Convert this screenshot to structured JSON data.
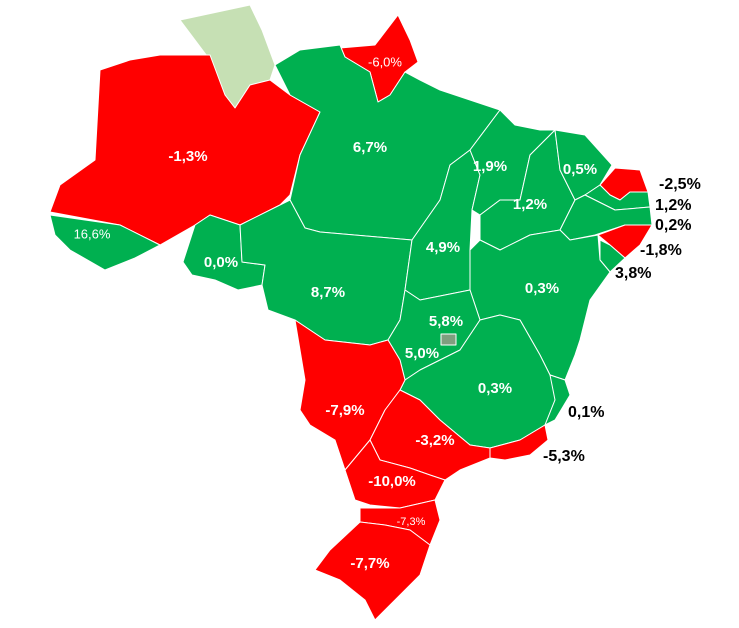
{
  "colors": {
    "negative": "#ff0000",
    "positive": "#00b050",
    "no_data": "#c6e0b4",
    "border": "#ffffff",
    "federal_district": "#7f9f7f"
  },
  "regions": [
    {
      "id": "roraima",
      "value": null,
      "color": "#c6e0b4"
    },
    {
      "id": "amapa",
      "value": "-6,0%",
      "color": "#ff0000"
    },
    {
      "id": "amazonas",
      "value": "-1,3%",
      "color": "#ff0000"
    },
    {
      "id": "acre",
      "value": "16,6%",
      "color": "#00b050"
    },
    {
      "id": "para",
      "value": "6,7%",
      "color": "#00b050"
    },
    {
      "id": "rondonia",
      "value": "0,0%",
      "color": "#00b050"
    },
    {
      "id": "mato-grosso",
      "value": "8,7%",
      "color": "#00b050"
    },
    {
      "id": "tocantins",
      "value": "4,9%",
      "color": "#00b050"
    },
    {
      "id": "maranhao",
      "value": "1,9%",
      "color": "#00b050"
    },
    {
      "id": "piaui",
      "value": "1,2%",
      "color": "#00b050"
    },
    {
      "id": "ceara",
      "value": "0,5%",
      "color": "#00b050"
    },
    {
      "id": "rio-grande-do-norte",
      "value": "-2,5%",
      "color": "#ff0000"
    },
    {
      "id": "paraiba",
      "value": "1,2%",
      "color": "#00b050"
    },
    {
      "id": "pernambuco",
      "value": "0,2%",
      "color": "#00b050"
    },
    {
      "id": "alagoas",
      "value": "-1,8%",
      "color": "#ff0000"
    },
    {
      "id": "sergipe",
      "value": "3,8%",
      "color": "#00b050"
    },
    {
      "id": "bahia",
      "value": "0,3%",
      "color": "#00b050"
    },
    {
      "id": "goias",
      "value": "5,0%",
      "color": "#00b050"
    },
    {
      "id": "distrito-federal",
      "value": "5,8%",
      "color": "#7f9f7f"
    },
    {
      "id": "minas-gerais",
      "value": "0,3%",
      "color": "#00b050"
    },
    {
      "id": "espirito-santo",
      "value": "0,1%",
      "color": "#00b050"
    },
    {
      "id": "mato-grosso-do-sul",
      "value": "-7,9%",
      "color": "#ff0000"
    },
    {
      "id": "sao-paulo",
      "value": "-3,2%",
      "color": "#ff0000"
    },
    {
      "id": "rio-de-janeiro",
      "value": "-5,3%",
      "color": "#ff0000"
    },
    {
      "id": "parana",
      "value": "-10,0%",
      "color": "#ff0000"
    },
    {
      "id": "santa-catarina",
      "value": "-7,3%",
      "color": "#ff0000"
    },
    {
      "id": "rio-grande-do-sul",
      "value": "-7,7%",
      "color": "#ff0000"
    }
  ]
}
